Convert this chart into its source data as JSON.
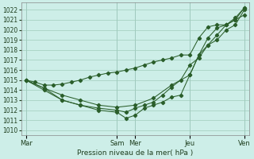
{
  "background_color": "#cdeee8",
  "grid_color": "#a0ccbb",
  "line_color": "#2a5e2a",
  "marker_color": "#2a5e2a",
  "xlabel": "Pression niveau de la mer( hPa )",
  "ylim": [
    1009.5,
    1022.7
  ],
  "yticks": [
    1010,
    1011,
    1012,
    1013,
    1014,
    1015,
    1016,
    1017,
    1018,
    1019,
    1020,
    1021,
    1022
  ],
  "xtick_labels": [
    "Mar",
    "Sam",
    "Mer",
    "Jeu",
    "Ven"
  ],
  "xtick_positions": [
    0,
    10,
    12,
    18,
    24
  ],
  "xlim": [
    -0.5,
    24.5
  ],
  "series": {
    "line1_x": [
      0,
      1,
      2,
      3,
      4,
      5,
      6,
      7,
      8,
      9,
      10,
      11,
      12,
      13,
      14,
      15,
      16,
      17,
      18,
      19,
      20,
      21,
      22,
      23,
      24
    ],
    "line1_y": [
      1015.0,
      1014.8,
      1014.5,
      1014.5,
      1014.6,
      1014.8,
      1015.0,
      1015.3,
      1015.5,
      1015.7,
      1015.8,
      1016.0,
      1016.2,
      1016.5,
      1016.8,
      1017.0,
      1017.2,
      1017.5,
      1017.5,
      1019.2,
      1020.3,
      1020.5,
      1020.5,
      1021.0,
      1022.2
    ],
    "line2_x": [
      0,
      2,
      4,
      6,
      8,
      10,
      12,
      14,
      16,
      18,
      19,
      20,
      21,
      22,
      23,
      24
    ],
    "line2_y": [
      1015.0,
      1014.2,
      1013.5,
      1013.0,
      1012.5,
      1012.3,
      1012.5,
      1013.2,
      1014.5,
      1015.5,
      1017.5,
      1018.5,
      1019.0,
      1020.0,
      1020.5,
      1022.0
    ],
    "line3_x": [
      0,
      2,
      4,
      6,
      8,
      10,
      11,
      12,
      13,
      14,
      15,
      16,
      17,
      18,
      19,
      20,
      21,
      22,
      23,
      24
    ],
    "line3_y": [
      1015.0,
      1014.0,
      1013.0,
      1012.5,
      1012.2,
      1012.0,
      1011.8,
      1012.2,
      1012.5,
      1012.8,
      1013.5,
      1014.3,
      1015.0,
      1016.5,
      1017.2,
      1018.5,
      1019.5,
      1020.5,
      1021.0,
      1021.5
    ],
    "line4_x": [
      0,
      2,
      4,
      6,
      8,
      10,
      11,
      12,
      13,
      14,
      15,
      16,
      17,
      18,
      19,
      20,
      21,
      22,
      23,
      24
    ],
    "line4_y": [
      1015.0,
      1014.2,
      1013.0,
      1012.5,
      1012.0,
      1011.8,
      1011.2,
      1011.5,
      1012.2,
      1012.5,
      1012.8,
      1013.3,
      1013.5,
      1015.5,
      1017.5,
      1019.2,
      1020.2,
      1020.5,
      1021.2,
      1022.2
    ]
  },
  "vlines": [
    0,
    10,
    12,
    18,
    24
  ],
  "ytick_fontsize": 5.5,
  "xtick_fontsize": 6.0,
  "xlabel_fontsize": 6.5,
  "linewidth": 0.75,
  "markersize": 2.2
}
